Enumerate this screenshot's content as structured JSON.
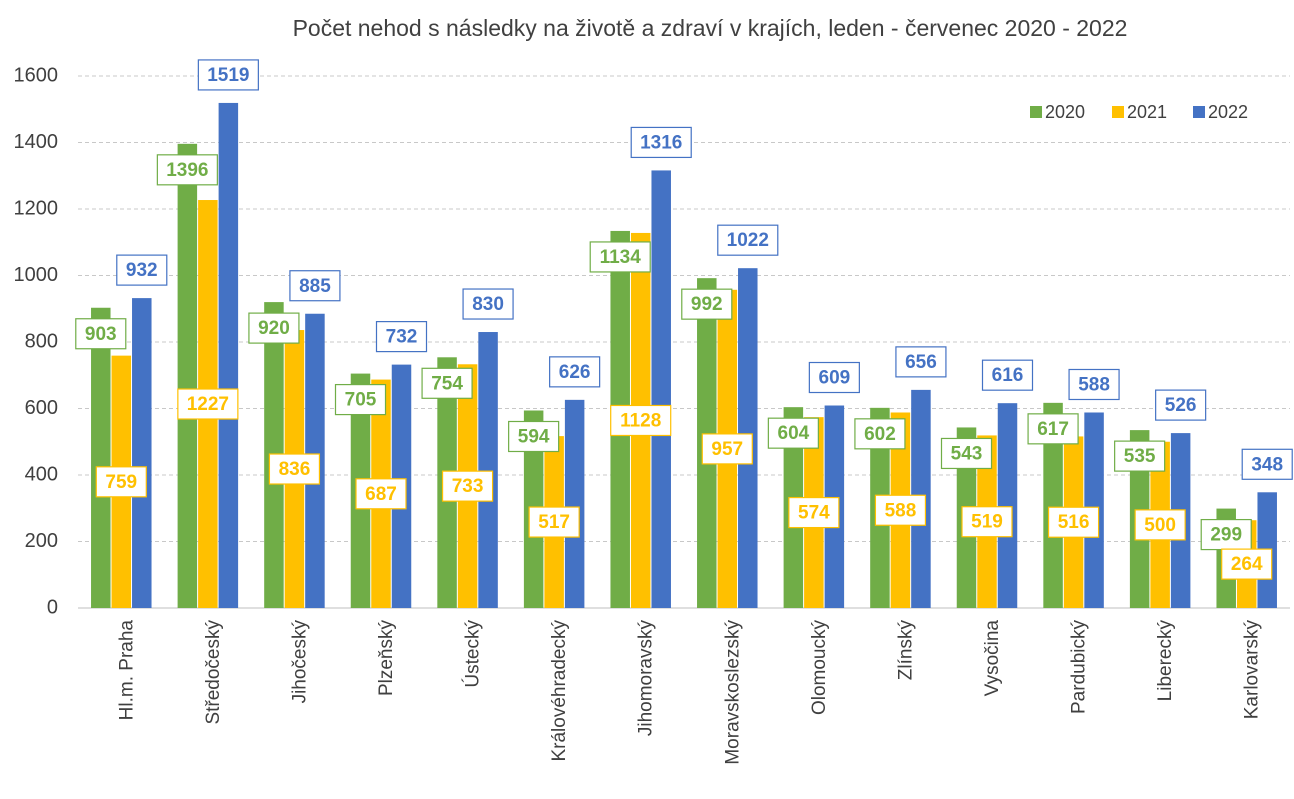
{
  "chart_data": {
    "type": "bar",
    "title": "Počet nehod s následky  na životě a zdraví v krajích, leden - červenec 2020 - 2022",
    "categories": [
      "Hl.m. Praha",
      "Středočeský",
      "Jihočeský",
      "Plzeňský",
      "Ústecký",
      "Královéhradecký",
      "Jihomoravský",
      "Moravskoslezský",
      "Olomoucký",
      "Zlínský",
      "Vysočina",
      "Pardubický",
      "Liberecký",
      "Karlovarský"
    ],
    "series": [
      {
        "name": "2020",
        "color": "#70ad47",
        "values": [
          903,
          1396,
          920,
          705,
          754,
          594,
          1134,
          992,
          604,
          602,
          543,
          617,
          535,
          299
        ]
      },
      {
        "name": "2021",
        "color": "#ffc000",
        "values": [
          759,
          1227,
          836,
          687,
          733,
          517,
          1128,
          957,
          574,
          588,
          519,
          516,
          500,
          264
        ]
      },
      {
        "name": "2022",
        "color": "#4472c4",
        "values": [
          932,
          1519,
          885,
          732,
          830,
          626,
          1316,
          1022,
          609,
          656,
          616,
          588,
          526,
          348
        ]
      }
    ],
    "ylim": [
      0,
      1600
    ],
    "yticks": [
      0,
      200,
      400,
      600,
      800,
      1000,
      1200,
      1400,
      1600
    ],
    "grid": true,
    "legend": "top-right"
  }
}
